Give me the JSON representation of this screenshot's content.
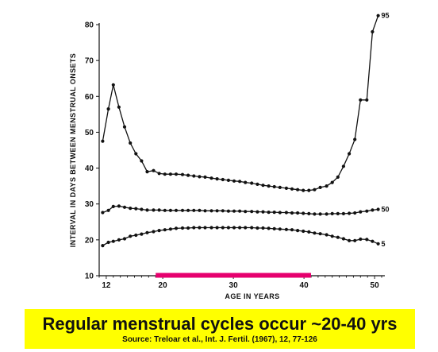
{
  "chart_data": {
    "type": "line",
    "ylabel": "INTERVAL IN DAYS BETWEEN MENSTRUAL ONSETS",
    "xlabel": "AGE IN YEARS",
    "ylim": [
      10,
      80
    ],
    "xlim": [
      11,
      51
    ],
    "yticks": [
      "10",
      "20",
      "30",
      "40",
      "50",
      "60",
      "70",
      "80"
    ],
    "xticks": [
      "12",
      "20",
      "30",
      "40",
      "50"
    ],
    "x": [
      11.5,
      12.3,
      13,
      13.8,
      14.6,
      15.4,
      16.2,
      17,
      17.8,
      18.7,
      19.5,
      20.3,
      21.1,
      21.9,
      22.8,
      23.6,
      24.4,
      25.2,
      26,
      26.9,
      27.7,
      28.5,
      29.3,
      30.1,
      30.9,
      31.7,
      32.6,
      33.4,
      34.2,
      35,
      35.8,
      36.6,
      37.5,
      38.3,
      39.1,
      39.9,
      40.7,
      41.5,
      42.3,
      43.2,
      44,
      44.8,
      45.6,
      46.4,
      47.2,
      48,
      48.9,
      49.7,
      50.5
    ],
    "series": [
      {
        "name": "95",
        "color": "#111111",
        "values": [
          47.5,
          56.5,
          63.2,
          57,
          51.5,
          47,
          44,
          42,
          39,
          39.3,
          38.5,
          38.3,
          38.3,
          38.3,
          38.2,
          38,
          37.8,
          37.6,
          37.5,
          37.2,
          37,
          36.8,
          36.6,
          36.4,
          36.3,
          36,
          35.8,
          35.5,
          35.2,
          35,
          34.8,
          34.6,
          34.4,
          34.2,
          34,
          33.8,
          33.8,
          34,
          34.6,
          35,
          36,
          37.5,
          40.5,
          44,
          48,
          59,
          59,
          78,
          95
        ]
      },
      {
        "name": "50",
        "color": "#111111",
        "values": [
          27.6,
          28.2,
          29.3,
          29.4,
          29.1,
          28.8,
          28.7,
          28.5,
          28.3,
          28.3,
          28.3,
          28.2,
          28.2,
          28.2,
          28.2,
          28.2,
          28.2,
          28.2,
          28.1,
          28.1,
          28.1,
          28.1,
          28,
          28,
          28,
          27.9,
          27.9,
          27.8,
          27.8,
          27.7,
          27.7,
          27.6,
          27.6,
          27.5,
          27.5,
          27.4,
          27.3,
          27.2,
          27.2,
          27.2,
          27.3,
          27.3,
          27.3,
          27.4,
          27.5,
          27.8,
          28,
          28.3,
          28.5
        ]
      },
      {
        "name": "5",
        "color": "#111111",
        "values": [
          18.4,
          19.3,
          19.6,
          20,
          20.3,
          21,
          21.3,
          21.6,
          22,
          22.3,
          22.6,
          22.8,
          23,
          23.2,
          23.3,
          23.3,
          23.4,
          23.4,
          23.4,
          23.4,
          23.4,
          23.4,
          23.4,
          23.4,
          23.4,
          23.4,
          23.4,
          23.3,
          23.3,
          23.2,
          23.1,
          23,
          22.9,
          22.8,
          22.6,
          22.4,
          22.2,
          21.9,
          21.7,
          21.4,
          21,
          20.7,
          20.3,
          19.8,
          19.8,
          20.2,
          20.1,
          19.6,
          18.9
        ]
      }
    ],
    "highlight": {
      "from": 19,
      "to": 41,
      "color": "#e6006e"
    },
    "grid": false,
    "legend": "none"
  },
  "caption": {
    "title": "Regular menstrual cycles occur ~20-40 yrs",
    "source": "Source: Treloar et al., Int. J. Fertil. (1967), 12, 77-126",
    "background": "#ffff00"
  }
}
